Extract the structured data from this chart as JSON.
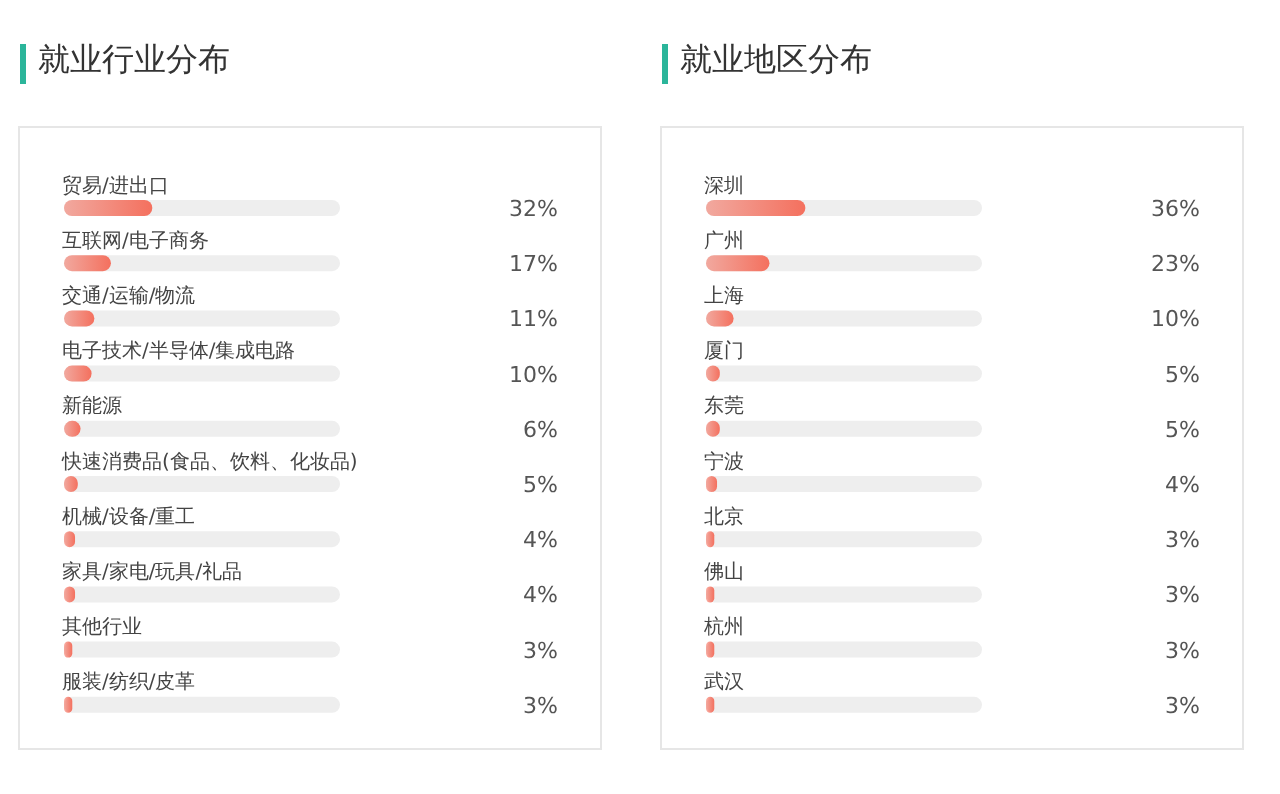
{
  "chart_data": [
    {
      "type": "bar",
      "orientation": "horizontal",
      "title": "就业行业分布",
      "categories": [
        "贸易/进出口",
        "互联网/电子商务",
        "交通/运输/物流",
        "电子技术/半导体/集成电路",
        "新能源",
        "快速消费品(食品、饮料、化妆品)",
        "机械/设备/重工",
        "家具/家电/玩具/礼品",
        "其他行业",
        "服装/纺织/皮革"
      ],
      "values": [
        32,
        17,
        11,
        10,
        6,
        5,
        4,
        4,
        3,
        3
      ],
      "value_labels": [
        "32%",
        "17%",
        "11%",
        "10%",
        "6%",
        "5%",
        "4%",
        "4%",
        "3%",
        "3%"
      ],
      "color": "#f4705e",
      "xlim": [
        0,
        100
      ],
      "tick_labels": "y"
    },
    {
      "type": "bar",
      "orientation": "horizontal",
      "title": "就业地区分布",
      "categories": [
        "深圳",
        "广州",
        "上海",
        "厦门",
        "东莞",
        "宁波",
        "北京",
        "佛山",
        "杭州",
        "武汉"
      ],
      "values": [
        36,
        23,
        10,
        5,
        5,
        4,
        3,
        3,
        3,
        3
      ],
      "value_labels": [
        "36%",
        "23%",
        "10%",
        "5%",
        "5%",
        "4%",
        "3%",
        "3%",
        "3%",
        "3%"
      ],
      "color": "#f4705e",
      "xlim": [
        0,
        100
      ],
      "tick_labels": "y"
    }
  ]
}
